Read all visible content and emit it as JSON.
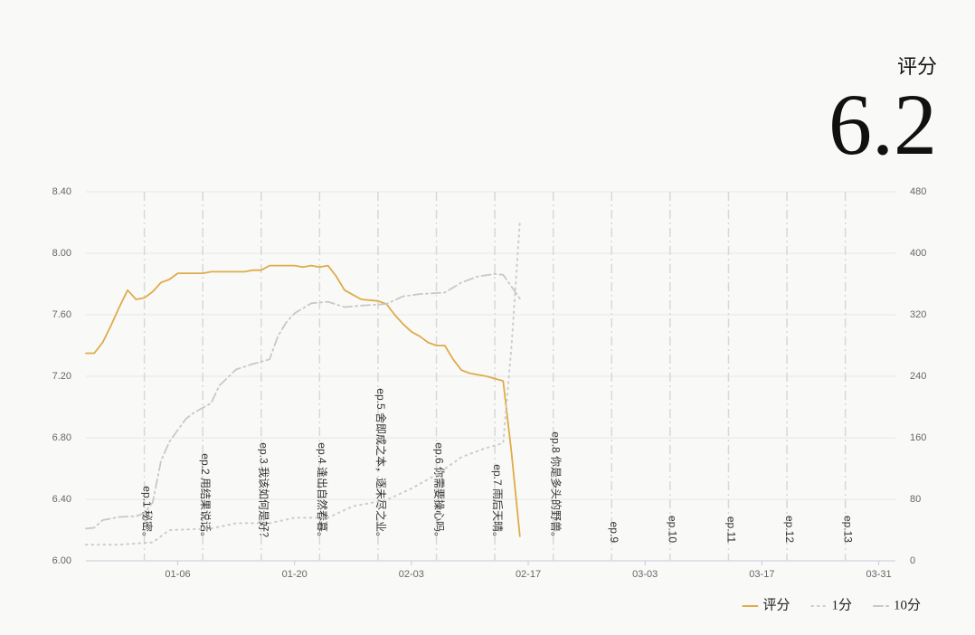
{
  "header": {
    "title": "评分",
    "score": 6.2
  },
  "chart_data": {
    "type": "line",
    "xlim": [
      "12-26",
      "04-02"
    ],
    "xticks": [
      "01-06",
      "01-20",
      "02-03",
      "02-17",
      "03-03",
      "03-17",
      "03-31"
    ],
    "ylim": [
      6,
      8.4
    ],
    "yticks": [
      {
        "value": 6,
        "label": "6.00"
      },
      {
        "value": 6.4,
        "label": "6.40"
      },
      {
        "value": 6.8,
        "label": "6.80"
      },
      {
        "value": 7.2,
        "label": "7.20"
      },
      {
        "value": 7.6,
        "label": "7.60"
      },
      {
        "value": 8,
        "label": "8.00"
      },
      {
        "value": 8.4,
        "label": "8.40"
      }
    ],
    "y2lim": [
      0,
      480
    ],
    "y2ticks": [
      0,
      80,
      160,
      240,
      320,
      400,
      480
    ],
    "grid": true,
    "legend": "bottom-right",
    "series": [
      {
        "name": "评分",
        "color": "#dfab4b",
        "dash": "solid",
        "x": [
          "12-26",
          "12-27",
          "12-28",
          "12-29",
          "12-30",
          "12-31",
          "01-01",
          "01-02",
          "01-03",
          "01-04",
          "01-05",
          "01-06",
          "01-09",
          "01-10",
          "01-14",
          "01-15",
          "01-16",
          "01-17",
          "01-20",
          "01-21",
          "01-22",
          "01-23",
          "01-24",
          "01-25",
          "01-26",
          "01-27",
          "01-28",
          "01-30",
          "01-31",
          "02-01",
          "02-02",
          "02-03",
          "02-04",
          "02-05",
          "02-06",
          "02-07",
          "02-08",
          "02-09",
          "02-10",
          "02-12",
          "02-14",
          "02-15",
          "02-16"
        ],
        "values": [
          7.35,
          7.35,
          7.42,
          7.53,
          7.65,
          7.76,
          7.7,
          7.71,
          7.75,
          7.81,
          7.83,
          7.87,
          7.87,
          7.88,
          7.88,
          7.89,
          7.89,
          7.92,
          7.92,
          7.91,
          7.92,
          7.91,
          7.92,
          7.85,
          7.76,
          7.73,
          7.7,
          7.69,
          7.67,
          7.6,
          7.54,
          7.49,
          7.46,
          7.42,
          7.4,
          7.4,
          7.31,
          7.24,
          7.22,
          7.2,
          7.17,
          6.7,
          6.16
        ]
      },
      {
        "name": "1分",
        "color": "#cccccc",
        "dash": "dotted",
        "axis": "y2",
        "x": [
          "12-26",
          "12-30",
          "01-03",
          "01-05",
          "01-10",
          "01-13",
          "01-17",
          "01-20",
          "01-24",
          "01-27",
          "01-31",
          "02-03",
          "02-06",
          "02-09",
          "02-12",
          "02-14",
          "02-15",
          "02-16"
        ],
        "values": [
          21,
          21,
          24,
          40,
          42,
          49,
          49,
          56,
          56,
          71,
          79,
          94,
          112,
          135,
          147,
          153,
          280,
          441
        ]
      },
      {
        "name": "10分",
        "color": "#c8c8c8",
        "dash": "dashdot",
        "axis": "y2",
        "x": [
          "12-26",
          "12-27",
          "12-28",
          "12-30",
          "01-01",
          "01-02",
          "01-03",
          "01-04",
          "01-05",
          "01-06",
          "01-07",
          "01-08",
          "01-10",
          "01-11",
          "01-13",
          "01-15",
          "01-17",
          "01-18",
          "01-19",
          "01-20",
          "01-22",
          "01-24",
          "01-26",
          "01-28",
          "01-31",
          "02-02",
          "02-04",
          "02-07",
          "02-09",
          "02-11",
          "02-13",
          "02-14",
          "02-16"
        ],
        "values": [
          42,
          43,
          53,
          57,
          58,
          62,
          76,
          130,
          155,
          170,
          185,
          193,
          205,
          228,
          249,
          256,
          262,
          292,
          310,
          322,
          335,
          337,
          330,
          332,
          334,
          344,
          347,
          349,
          362,
          370,
          373,
          372,
          341
        ]
      }
    ],
    "episodes": [
      {
        "date": "01-02",
        "label": "ep.1 秘密。"
      },
      {
        "date": "01-09",
        "label": "ep.2 用结果说话。"
      },
      {
        "date": "01-16",
        "label": "ep.3 我该如何是好？"
      },
      {
        "date": "01-23",
        "label": "ep.4 逢出自然春暮。"
      },
      {
        "date": "01-30",
        "label": "ep.5 舍即成之本，逐未尽之业。"
      },
      {
        "date": "02-06",
        "label": "ep.6 你需要操心吗。"
      },
      {
        "date": "02-13",
        "label": "ep.7 雨后天晴。"
      },
      {
        "date": "02-20",
        "label": "ep.8 你是多头的野兽。"
      },
      {
        "date": "02-27",
        "label": "ep.9"
      },
      {
        "date": "03-06",
        "label": "ep.10"
      },
      {
        "date": "03-13",
        "label": "ep.11"
      },
      {
        "date": "03-20",
        "label": "ep.12"
      },
      {
        "date": "03-27",
        "label": "ep.13"
      }
    ]
  }
}
